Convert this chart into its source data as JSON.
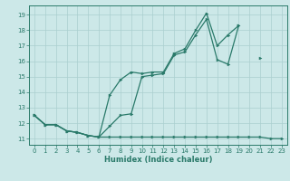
{
  "xlabel": "Humidex (Indice chaleur)",
  "bg_color": "#cce8e8",
  "grid_color": "#aacfcf",
  "line_color": "#2a7a6a",
  "x_values": [
    0,
    1,
    2,
    3,
    4,
    5,
    6,
    7,
    8,
    9,
    10,
    11,
    12,
    13,
    14,
    15,
    16,
    17,
    18,
    19,
    20,
    21,
    22,
    23
  ],
  "series1": [
    12.5,
    11.9,
    11.9,
    11.5,
    11.4,
    11.2,
    11.1,
    11.8,
    12.5,
    12.6,
    15.0,
    15.1,
    15.2,
    16.4,
    16.6,
    17.7,
    18.7,
    16.1,
    15.8,
    18.3,
    null,
    16.2,
    null,
    null
  ],
  "series2": [
    12.5,
    11.9,
    11.9,
    11.5,
    11.4,
    11.2,
    11.1,
    13.8,
    14.8,
    15.3,
    15.2,
    15.3,
    15.3,
    16.5,
    16.8,
    18.0,
    19.1,
    17.0,
    17.7,
    18.3,
    null,
    null,
    null,
    null
  ],
  "series3": [
    12.5,
    11.9,
    11.9,
    11.5,
    11.4,
    11.2,
    11.1,
    11.1,
    11.1,
    11.1,
    11.1,
    11.1,
    11.1,
    11.1,
    11.1,
    11.1,
    11.1,
    11.1,
    11.1,
    11.1,
    11.1,
    11.1,
    11.0,
    11.0
  ],
  "ylim": [
    10.6,
    19.6
  ],
  "xlim": [
    -0.5,
    23.5
  ],
  "yticks": [
    11,
    12,
    13,
    14,
    15,
    16,
    17,
    18,
    19
  ],
  "xticks": [
    0,
    1,
    2,
    3,
    4,
    5,
    6,
    7,
    8,
    9,
    10,
    11,
    12,
    13,
    14,
    15,
    16,
    17,
    18,
    19,
    20,
    21,
    22,
    23
  ],
  "xlabel_fontsize": 6.0,
  "tick_fontsize": 5.0,
  "linewidth": 0.9,
  "markersize": 2.2
}
